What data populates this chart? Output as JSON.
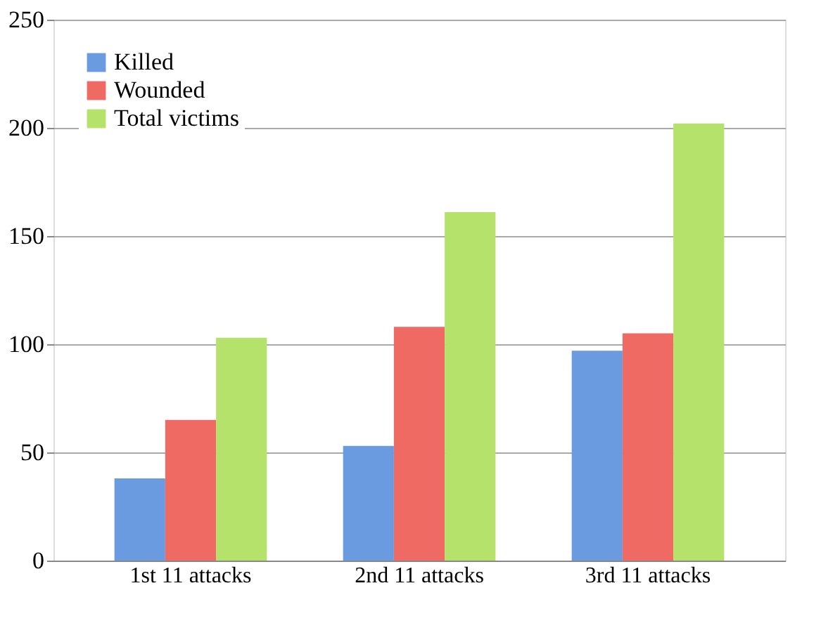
{
  "chart_data": {
    "type": "bar",
    "categories": [
      "1st 11 attacks",
      "2nd 11 attacks",
      "3rd 11 attacks"
    ],
    "series": [
      {
        "name": "Killed",
        "color": "#6a9be0",
        "values": [
          38,
          53,
          97
        ]
      },
      {
        "name": "Wounded",
        "color": "#ee6a63",
        "values": [
          65,
          108,
          105
        ]
      },
      {
        "name": "Total victims",
        "color": "#b5e26a",
        "values": [
          103,
          161,
          202
        ]
      }
    ],
    "ylim": [
      0,
      250
    ],
    "yticks": [
      0,
      50,
      100,
      150,
      200,
      250
    ],
    "grid": "y",
    "legend": "top left"
  }
}
